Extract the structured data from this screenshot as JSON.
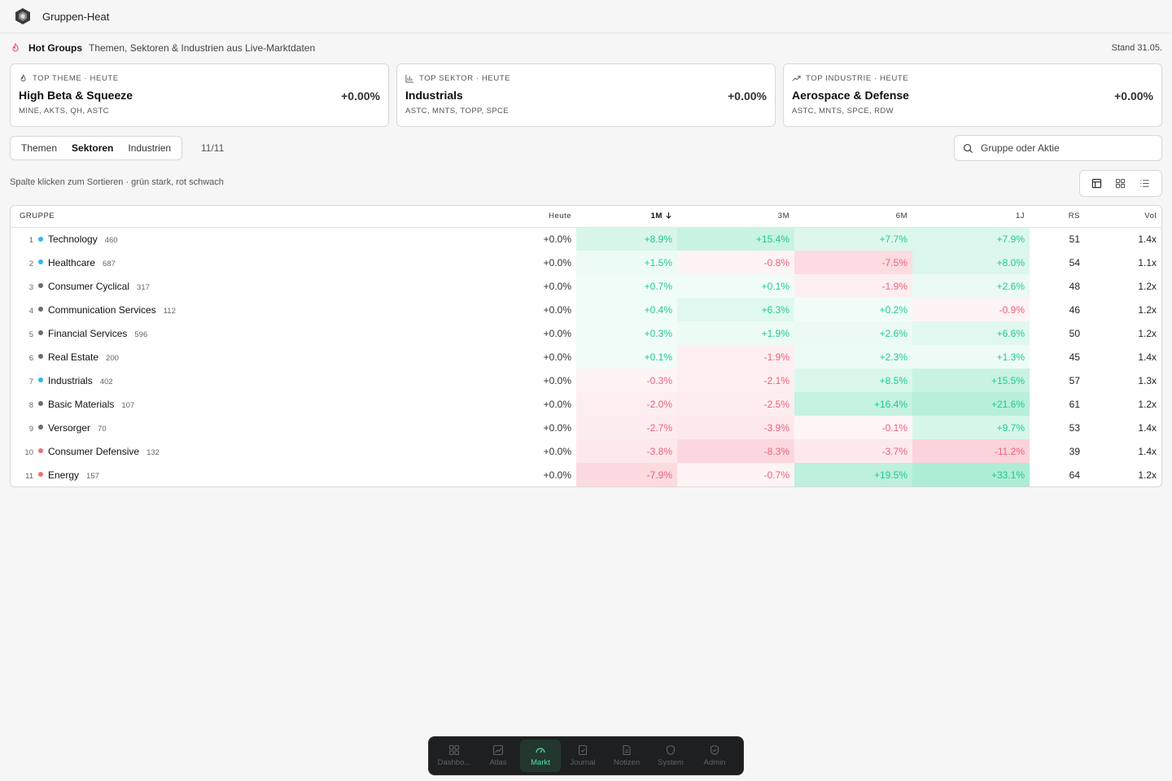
{
  "app": {
    "title": "Gruppen-Heat"
  },
  "hot": {
    "title": "Hot Groups",
    "subtitle": "Themen, Sektoren & Industrien aus Live-Marktdaten",
    "stand": "Stand 31.05."
  },
  "cards": [
    {
      "label": "TOP THEME · HEUTE",
      "name": "High Beta & Squeeze",
      "tickers": "MINE, AKTS, QH, ASTC",
      "value": "+0.00%",
      "icon": "flame-icon"
    },
    {
      "label": "TOP SEKTOR · HEUTE",
      "name": "Industrials",
      "tickers": "ASTC, MNTS, TOPP, SPCE",
      "value": "+0.00%",
      "icon": "bar-chart-icon"
    },
    {
      "label": "TOP INDUSTRIE · HEUTE",
      "name": "Aerospace & Defense",
      "tickers": "ASTC, MNTS, SPCE, RDW",
      "value": "+0.00%",
      "icon": "trending-up-icon"
    }
  ],
  "tabs": [
    {
      "label": "Themen"
    },
    {
      "label": "Sektoren"
    },
    {
      "label": "Industrien"
    }
  ],
  "active_tab": "Sektoren",
  "count": "11/11",
  "search": {
    "placeholder": "Gruppe oder Aktie"
  },
  "hint": "Spalte klicken zum Sortieren · grün stark, rot schwach",
  "table": {
    "headers": {
      "group": "GRUPPE",
      "today": "Heute",
      "m1": "1M",
      "m3": "3M",
      "m6": "6M",
      "y1": "1J",
      "rs": "RS",
      "vol": "Vol"
    },
    "rows": [
      {
        "rank": "1",
        "name": "Technology",
        "count": "460",
        "dot": "#2fb6f0",
        "today": "+0.0%",
        "m1": "+8.9%",
        "m3": "+15.4%",
        "m6": "+7.7%",
        "y1": "+7.9%",
        "rs": "51",
        "vol": "1.4x"
      },
      {
        "rank": "2",
        "name": "Healthcare",
        "count": "687",
        "dot": "#2fb6f0",
        "today": "+0.0%",
        "m1": "+1.5%",
        "m3": "-0.8%",
        "m6": "-7.5%",
        "y1": "+8.0%",
        "rs": "54",
        "vol": "1.1x"
      },
      {
        "rank": "3",
        "name": "Consumer Cyclical",
        "count": "317",
        "dot": "#6b6b6b",
        "today": "+0.0%",
        "m1": "+0.7%",
        "m3": "+0.1%",
        "m6": "-1.9%",
        "y1": "+2.6%",
        "rs": "48",
        "vol": "1.2x"
      },
      {
        "rank": "4",
        "name": "Communication Services",
        "count": "112",
        "dot": "#6b6b6b",
        "today": "+0.0%",
        "m1": "+0.4%",
        "m3": "+6.3%",
        "m6": "+0.2%",
        "y1": "-0.9%",
        "rs": "46",
        "vol": "1.2x"
      },
      {
        "rank": "5",
        "name": "Financial Services",
        "count": "596",
        "dot": "#6b6b6b",
        "today": "+0.0%",
        "m1": "+0.3%",
        "m3": "+1.9%",
        "m6": "+2.6%",
        "y1": "+6.6%",
        "rs": "50",
        "vol": "1.2x"
      },
      {
        "rank": "6",
        "name": "Real Estate",
        "count": "200",
        "dot": "#6b6b6b",
        "today": "+0.0%",
        "m1": "+0.1%",
        "m3": "-1.9%",
        "m6": "+2.3%",
        "y1": "+1.3%",
        "rs": "45",
        "vol": "1.4x"
      },
      {
        "rank": "7",
        "name": "Industrials",
        "count": "402",
        "dot": "#2fb6f0",
        "today": "+0.0%",
        "m1": "-0.3%",
        "m3": "-2.1%",
        "m6": "+8.5%",
        "y1": "+15.5%",
        "rs": "57",
        "vol": "1.3x"
      },
      {
        "rank": "8",
        "name": "Basic Materials",
        "count": "107",
        "dot": "#6b6b6b",
        "today": "+0.0%",
        "m1": "-2.0%",
        "m3": "-2.5%",
        "m6": "+16.4%",
        "y1": "+21.6%",
        "rs": "61",
        "vol": "1.2x"
      },
      {
        "rank": "9",
        "name": "Versorger",
        "count": "70",
        "dot": "#6b6b6b",
        "today": "+0.0%",
        "m1": "-2.7%",
        "m3": "-3.9%",
        "m6": "-0.1%",
        "y1": "+9.7%",
        "rs": "53",
        "vol": "1.4x"
      },
      {
        "rank": "10",
        "name": "Consumer Defensive",
        "count": "132",
        "dot": "#f07070",
        "today": "+0.0%",
        "m1": "-3.8%",
        "m3": "-8.3%",
        "m6": "-3.7%",
        "y1": "-11.2%",
        "rs": "39",
        "vol": "1.4x"
      },
      {
        "rank": "11",
        "name": "Energy",
        "count": "157",
        "dot": "#f07070",
        "today": "+0.0%",
        "m1": "-7.9%",
        "m3": "-0.7%",
        "m6": "+19.5%",
        "y1": "+33.1%",
        "rs": "64",
        "vol": "1.2x"
      }
    ]
  },
  "colors": {
    "positive": "#1fcc8a",
    "negative": "#f0607a"
  },
  "nav": [
    {
      "label": "Dashbo...",
      "icon": "dashboard-icon"
    },
    {
      "label": "Atlas",
      "icon": "chart-icon"
    },
    {
      "label": "Markt",
      "icon": "gauge-icon",
      "active": true
    },
    {
      "label": "Journal",
      "icon": "journal-icon"
    },
    {
      "label": "Notizen",
      "icon": "notes-icon"
    },
    {
      "label": "System",
      "icon": "shield-icon"
    },
    {
      "label": "Admin",
      "icon": "shield-check-icon"
    }
  ]
}
